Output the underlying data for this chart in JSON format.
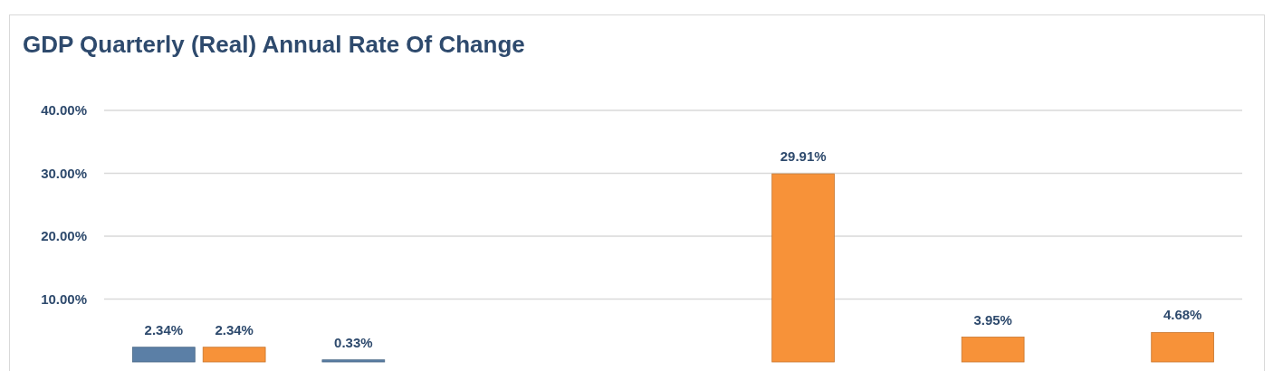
{
  "chart_data": {
    "type": "bar",
    "title": "GDP Quarterly (Real) Annual Rate Of Change",
    "categories": [
      null,
      null,
      null,
      null,
      null,
      null
    ],
    "series": [
      {
        "color": "#5b7fa6",
        "values": [
          2.34,
          0.33,
          null,
          null,
          null,
          null
        ],
        "value_labels": [
          "2.34%",
          "0.33%",
          null,
          null,
          null,
          null
        ]
      },
      {
        "color": "#f79239",
        "values": [
          2.34,
          null,
          null,
          29.91,
          3.95,
          4.68
        ],
        "value_labels": [
          "2.34%",
          null,
          null,
          "29.91%",
          "3.95%",
          "4.68%"
        ]
      }
    ],
    "ylim": [
      0,
      40
    ],
    "yticks": [
      {
        "value": 10,
        "label": "10.00%"
      },
      {
        "value": 20,
        "label": "20.00%"
      },
      {
        "value": 30,
        "label": "30.00%"
      },
      {
        "value": 40,
        "label": "40.00%"
      }
    ],
    "grid": "y"
  }
}
